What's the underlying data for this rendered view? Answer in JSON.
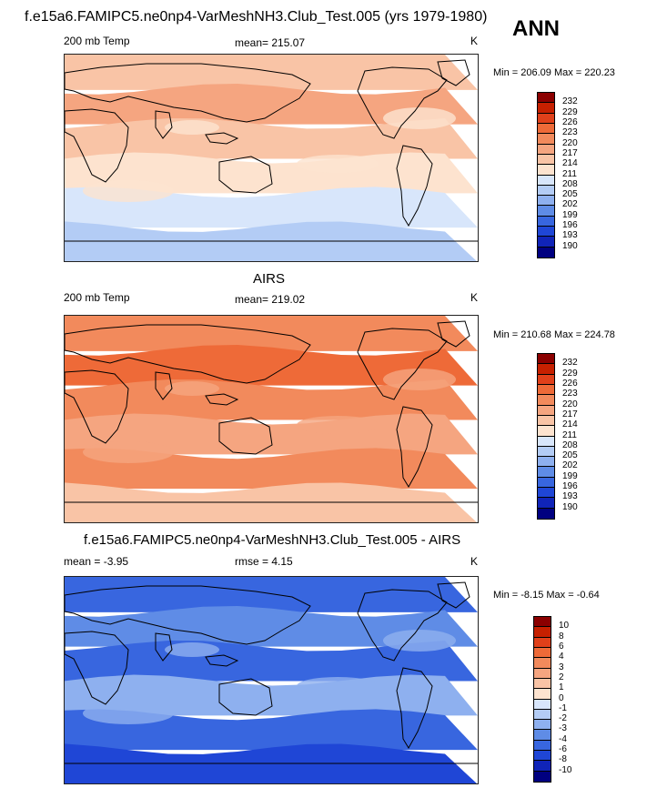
{
  "header": {
    "title": "f.e15a6.FAMIPC5.ne0np4-VarMeshNH3.Club_Test.005 (yrs 1979-1980)",
    "season": "ANN"
  },
  "panel1": {
    "left_label": "200 mb Temp",
    "mean": "mean= 215.07",
    "units": "K",
    "minmax": "Min = 206.09 Max = 220.23"
  },
  "panel2": {
    "title": "AIRS",
    "left_label": "200 mb Temp",
    "mean": "mean= 219.02",
    "units": "K",
    "minmax": "Min = 210.68 Max = 224.78"
  },
  "panel3": {
    "title": "f.e15a6.FAMIPC5.ne0np4-VarMeshNH3.Club_Test.005 - AIRS",
    "mean": "mean =  -3.95",
    "rmse": "rmse =   4.15",
    "units": "K",
    "minmax": "Min =  -8.15 Max =  -0.64"
  },
  "colorbar_abs": {
    "levels": [
      "232",
      "229",
      "226",
      "223",
      "220",
      "217",
      "214",
      "211",
      "208",
      "205",
      "202",
      "199",
      "196",
      "193",
      "190"
    ],
    "colors": [
      "#8b0000",
      "#c62000",
      "#e0401a",
      "#ee6a38",
      "#f28a5c",
      "#f5a580",
      "#f9c4a6",
      "#fde3cf",
      "#d8e6fb",
      "#b3ccf5",
      "#8eb0ef",
      "#5f8ce6",
      "#3866df",
      "#1f46d6",
      "#1024b8",
      "#000080"
    ]
  },
  "colorbar_diff": {
    "levels": [
      "10",
      "8",
      "6",
      "4",
      "3",
      "2",
      "1",
      "0",
      "-1",
      "-2",
      "-3",
      "-4",
      "-6",
      "-8",
      "-10"
    ],
    "colors": [
      "#8b0000",
      "#c62000",
      "#e0401a",
      "#ee6a38",
      "#f28a5c",
      "#f5a580",
      "#f9c4a6",
      "#fde3cf",
      "#d8e6fb",
      "#b3ccf5",
      "#8eb0ef",
      "#5f8ce6",
      "#3866df",
      "#1f46d6",
      "#1024b8",
      "#000080"
    ]
  },
  "map_fields": {
    "panel1": [
      "#f9c4a6",
      "#f5a580",
      "#f9c4a6",
      "#fde3cf",
      "#d8e6fb",
      "#b3ccf5"
    ],
    "panel2": [
      "#f28a5c",
      "#ee6a38",
      "#f28a5c",
      "#f5a580",
      "#f28a5c",
      "#f9c4a6"
    ],
    "panel3": [
      "#3866df",
      "#5f8ce6",
      "#3866df",
      "#8eb0ef",
      "#3866df",
      "#1f46d6"
    ]
  }
}
